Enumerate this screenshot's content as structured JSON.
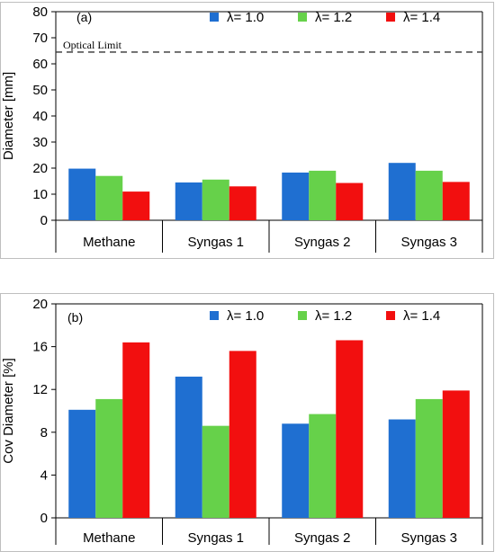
{
  "chart_data": [
    {
      "type": "bar",
      "panel_label": "(a)",
      "ylabel": "Diameter [mm]",
      "ylim": [
        0,
        80
      ],
      "yticks": [
        0,
        10,
        20,
        30,
        40,
        50,
        60,
        70,
        80
      ],
      "categories": [
        "Methane",
        "Syngas 1",
        "Syngas 2",
        "Syngas 3"
      ],
      "series": [
        {
          "name": "λ= 1.0",
          "color": "#1f6fd1",
          "values": [
            19.8,
            14.5,
            18.3,
            22.0
          ]
        },
        {
          "name": "λ= 1.2",
          "color": "#66d14a",
          "values": [
            17.0,
            15.6,
            19.0,
            19.0
          ]
        },
        {
          "name": "λ= 1.4",
          "color": "#f20f0f",
          "values": [
            11.0,
            13.0,
            14.3,
            14.7
          ]
        }
      ],
      "reference_line": {
        "label": "Optical Limit",
        "value": 64.5,
        "style": "dashed"
      },
      "legend_position": "top",
      "grid": false
    },
    {
      "type": "bar",
      "panel_label": "(b)",
      "ylabel": "Cov Diameter [%]",
      "ylim": [
        0,
        20
      ],
      "yticks": [
        0,
        4,
        8,
        12,
        16,
        20
      ],
      "categories": [
        "Methane",
        "Syngas 1",
        "Syngas 2",
        "Syngas 3"
      ],
      "series": [
        {
          "name": "λ= 1.0",
          "color": "#1f6fd1",
          "values": [
            10.1,
            13.2,
            8.8,
            9.2
          ]
        },
        {
          "name": "λ= 1.2",
          "color": "#66d14a",
          "values": [
            11.1,
            8.6,
            9.7,
            11.1
          ]
        },
        {
          "name": "λ= 1.4",
          "color": "#f20f0f",
          "values": [
            16.4,
            15.6,
            16.6,
            11.9
          ]
        }
      ],
      "legend_position": "top",
      "grid": false
    }
  ]
}
